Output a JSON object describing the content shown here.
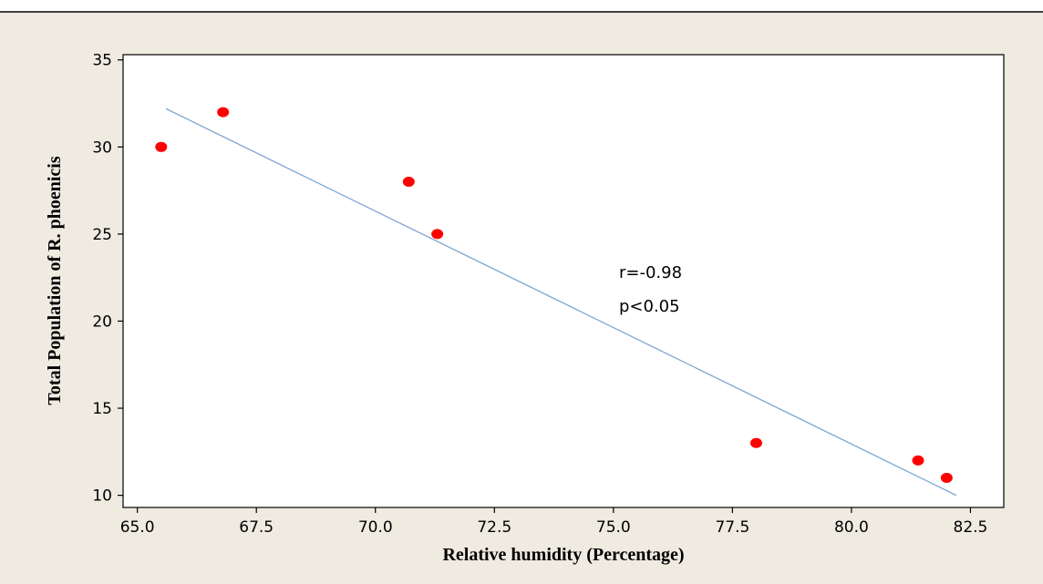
{
  "chart_data": {
    "type": "scatter",
    "xlabel": "Relative humidity (Percentage)",
    "ylabel": "Total Population of R. phoenicis",
    "xlim": [
      64.7,
      83.2
    ],
    "ylim": [
      9.3,
      35.3
    ],
    "xticks": [
      65.0,
      67.5,
      70.0,
      72.5,
      75.0,
      77.5,
      80.0,
      82.5
    ],
    "xtick_labels": [
      "65.0",
      "67.5",
      "70.0",
      "72.5",
      "75.0",
      "77.5",
      "80.0",
      "82.5"
    ],
    "yticks": [
      10,
      15,
      20,
      25,
      30,
      35
    ],
    "ytick_labels": [
      "10",
      "15",
      "20",
      "25",
      "30",
      "35"
    ],
    "points": [
      {
        "x": 65.5,
        "y": 30
      },
      {
        "x": 66.8,
        "y": 32
      },
      {
        "x": 70.7,
        "y": 28
      },
      {
        "x": 71.3,
        "y": 25
      },
      {
        "x": 78.0,
        "y": 13
      },
      {
        "x": 81.4,
        "y": 12
      },
      {
        "x": 82.0,
        "y": 11
      }
    ],
    "trendline": {
      "x": [
        65.6,
        82.2
      ],
      "y": [
        32.2,
        10.0
      ]
    },
    "annotations": [
      "r=-0.98",
      "p<0.05"
    ],
    "grid": false,
    "colors": {
      "background": "#efebe1",
      "plot_background": "#ffffff",
      "point": "#ff0000",
      "trendline": "#7ea6d2",
      "frame": "#000000"
    }
  }
}
